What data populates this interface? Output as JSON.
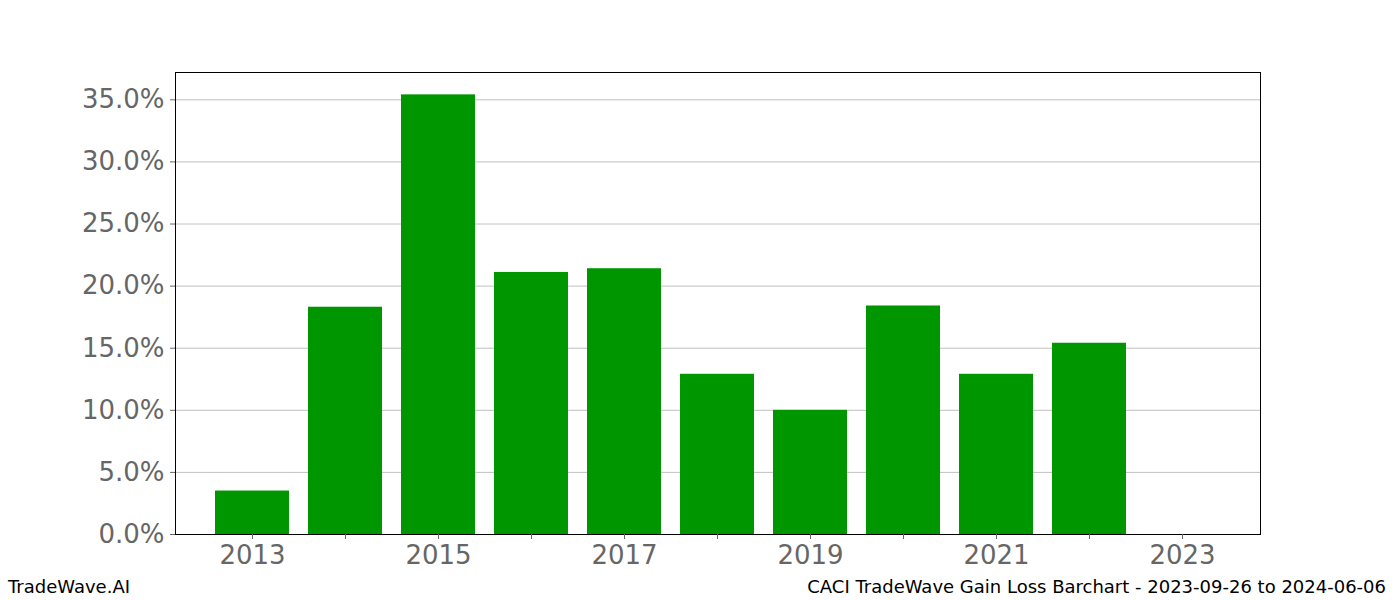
{
  "chart_data": {
    "type": "bar",
    "title": "CACI TradeWave Gain Loss Barchart - 2023-09-26 to 2024-06-06",
    "caption": "TradeWave.AI",
    "categories": [
      "2013",
      null,
      "2015",
      null,
      "2017",
      null,
      "2019",
      null,
      "2021",
      null,
      "2023"
    ],
    "values": [
      3.5,
      18.3,
      35.4,
      21.1,
      21.4,
      12.9,
      10.0,
      18.4,
      12.9,
      15.4,
      null
    ],
    "color": "#009600",
    "ylim": [
      0,
      37.2
    ],
    "yticks": [
      {
        "value": 0,
        "label": "0.0%"
      },
      {
        "value": 5,
        "label": "5.0%"
      },
      {
        "value": 10,
        "label": "10.0%"
      },
      {
        "value": 15,
        "label": "15.0%"
      },
      {
        "value": 20,
        "label": "20.0%"
      },
      {
        "value": 25,
        "label": "25.0%"
      },
      {
        "value": 30,
        "label": "30.0%"
      },
      {
        "value": 35,
        "label": "35.0%"
      }
    ],
    "grid": true
  }
}
